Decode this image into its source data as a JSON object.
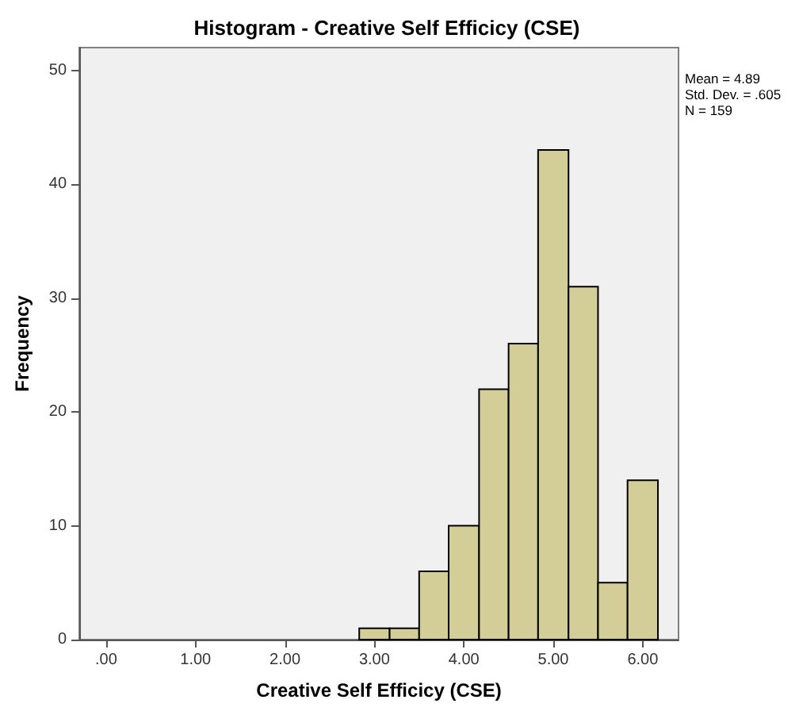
{
  "chart_data": {
    "type": "histogram",
    "title": "Histogram - Creative Self Efficicy (CSE)",
    "xlabel": "Creative Self Efficicy (CSE)",
    "ylabel": "Frequency",
    "bins": [
      2.83,
      3.17,
      3.5,
      3.83,
      4.17,
      4.5,
      4.83,
      5.17,
      5.5,
      5.83,
      6.17
    ],
    "values": [
      1,
      1,
      6,
      10,
      22,
      26,
      43,
      31,
      5,
      14
    ],
    "color": "#d3ce97",
    "xlim": [
      -0.3,
      6.4
    ],
    "xticks": [
      {
        "value": 0,
        "label": ".00"
      },
      {
        "value": 1,
        "label": "1.00"
      },
      {
        "value": 2,
        "label": "2.00"
      },
      {
        "value": 3,
        "label": "3.00"
      },
      {
        "value": 4,
        "label": "4.00"
      },
      {
        "value": 5,
        "label": "5.00"
      },
      {
        "value": 6,
        "label": "6.00"
      }
    ],
    "ylim": [
      0,
      52
    ],
    "yticks": [
      0,
      10,
      20,
      30,
      40,
      50
    ],
    "grid": false,
    "annotations": [
      "Mean = 4.89",
      "Std. Dev. = .605",
      "N = 159"
    ]
  }
}
